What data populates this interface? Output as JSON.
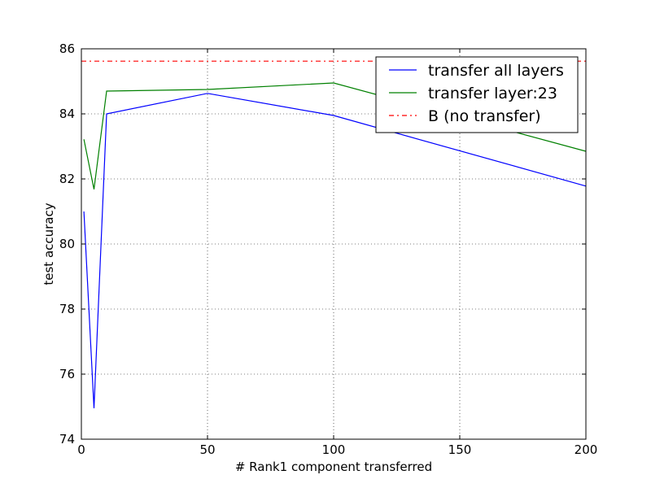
{
  "chart_data": {
    "type": "line",
    "title": "",
    "xlabel": "# Rank1 component transferred",
    "ylabel": "test accuracy",
    "xlim": [
      0,
      200
    ],
    "ylim": [
      74,
      86
    ],
    "xticks": [
      0,
      50,
      100,
      150,
      200
    ],
    "yticks": [
      74,
      76,
      78,
      80,
      82,
      84,
      86
    ],
    "grid": true,
    "legend_position": "top-right",
    "series": [
      {
        "name": "transfer all layers",
        "color": "#0000ff",
        "style": "solid",
        "x": [
          1,
          5,
          10,
          50,
          100,
          200
        ],
        "y": [
          81.0,
          74.95,
          84.0,
          84.63,
          83.95,
          81.78
        ]
      },
      {
        "name": "transfer layer:23",
        "color": "#008000",
        "style": "solid",
        "x": [
          1,
          5,
          10,
          50,
          100,
          200
        ],
        "y": [
          83.22,
          81.68,
          84.7,
          84.75,
          84.95,
          82.85
        ]
      },
      {
        "name": "B (no transfer)",
        "color": "#ff0000",
        "style": "dashdot",
        "x": [
          0,
          200
        ],
        "y": [
          85.62,
          85.62
        ]
      }
    ]
  }
}
